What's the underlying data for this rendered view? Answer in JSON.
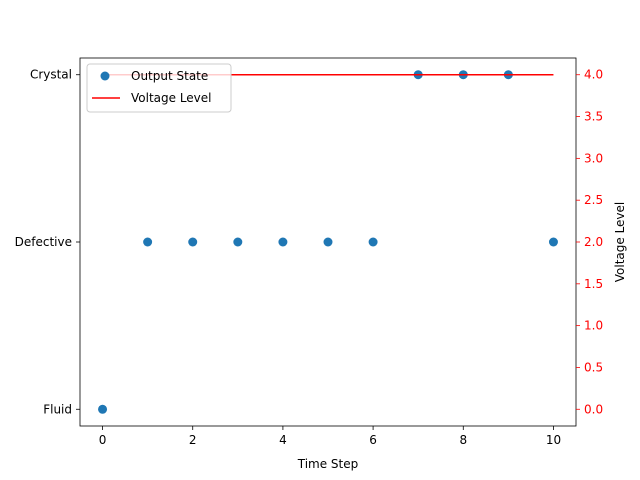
{
  "chart_data": {
    "type": "scatter",
    "xlabel": "Time Step",
    "ylabel_left": "",
    "ylabel_right": "Voltage Level",
    "x_ticks": [
      0,
      2,
      4,
      6,
      8,
      10
    ],
    "xlim": [
      -0.5,
      10.5
    ],
    "left_axis": {
      "categories": [
        "Fluid",
        "Defective",
        "Crystal"
      ],
      "category_values": [
        0,
        1,
        2
      ],
      "ylim": [
        -0.1,
        2.1
      ]
    },
    "right_axis": {
      "ticks": [
        "0.0",
        "0.5",
        "1.0",
        "1.5",
        "2.0",
        "2.5",
        "3.0",
        "3.5",
        "4.0"
      ],
      "tick_values": [
        0,
        0.5,
        1,
        1.5,
        2,
        2.5,
        3,
        3.5,
        4
      ],
      "ylim": [
        -0.2,
        4.2
      ],
      "color": "#ff0000"
    },
    "series": [
      {
        "name": "Output State",
        "kind": "scatter",
        "axis": "left",
        "color": "#1f77b4",
        "x": [
          0,
          1,
          2,
          3,
          4,
          5,
          6,
          7,
          8,
          9,
          10
        ],
        "y": [
          0,
          1,
          1,
          1,
          1,
          1,
          1,
          2,
          2,
          2,
          1
        ]
      },
      {
        "name": "Voltage Level",
        "kind": "line",
        "axis": "right",
        "color": "#ff0000",
        "x": [
          0,
          1,
          2,
          3,
          4,
          5,
          6,
          7,
          8,
          9,
          10
        ],
        "y": [
          4,
          4,
          4,
          4,
          4,
          4,
          4,
          4,
          4,
          4,
          4
        ]
      }
    ],
    "legend": {
      "placement": "upper-left"
    },
    "grid": false
  }
}
